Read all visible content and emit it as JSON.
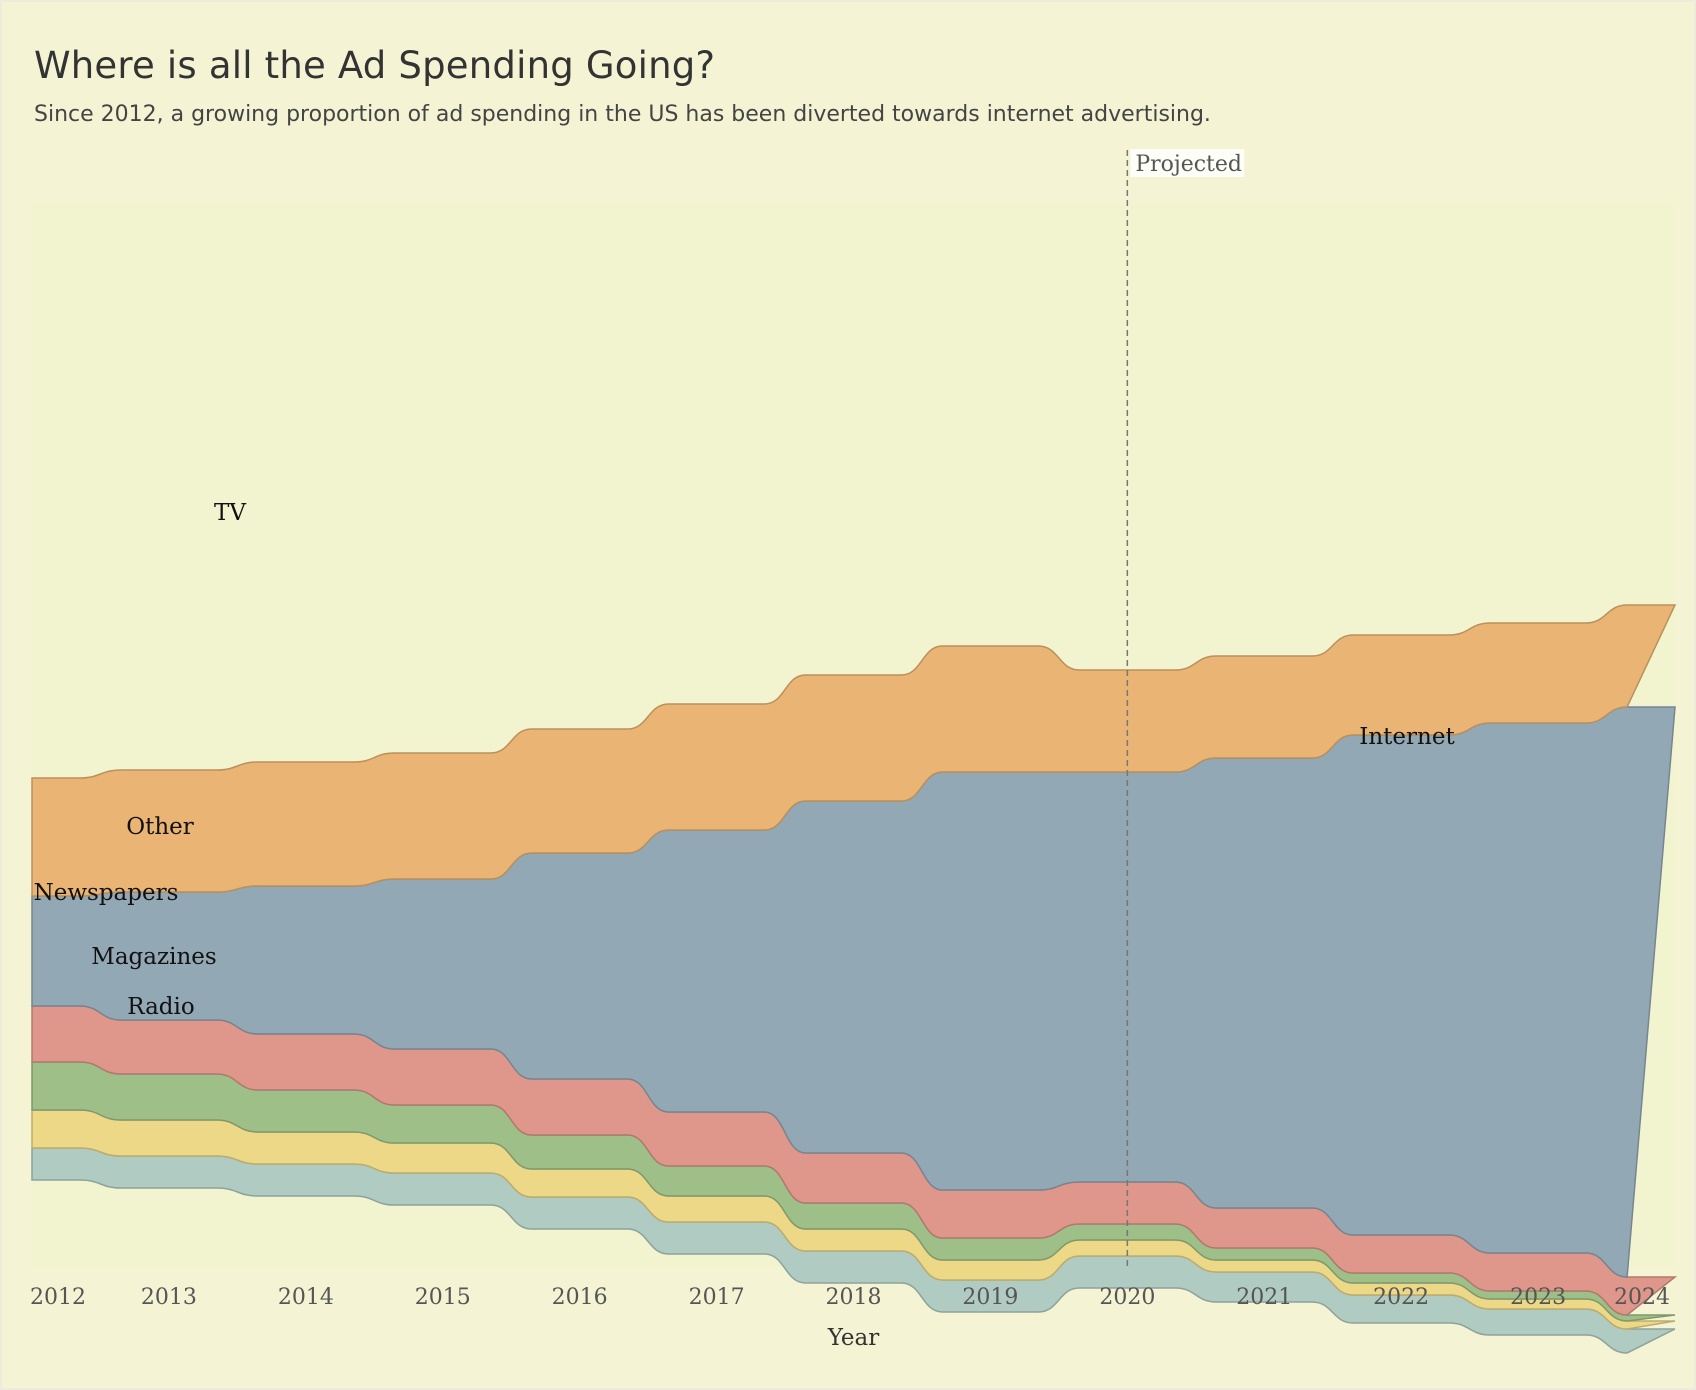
{
  "title": "Where is all the Ad Spending Going?",
  "subtitle": "Since 2012, a growing proportion of ad spending in the US has been diverted towards internet advertising.",
  "colors": {
    "background": "#f4f4d4",
    "plot_background": "#f2f4cf"
  },
  "chart_data": {
    "type": "area",
    "stack_offset": "streamgraph",
    "x": [
      2012,
      2013,
      2014,
      2015,
      2016,
      2017,
      2018,
      2019,
      2020,
      2021,
      2022,
      2023,
      2024
    ],
    "x_ticks": [
      "2012",
      "2013",
      "2014",
      "2015",
      "2016",
      "2017",
      "2018",
      "2019",
      "2020",
      "2021",
      "2022",
      "2023",
      "2024"
    ],
    "xlabel": "Year",
    "ylabel": "",
    "grid": false,
    "legend": "none",
    "series_order_bottom_to_top": [
      "Radio",
      "Magazines",
      "Newspapers",
      "Other",
      "Internet",
      "TV"
    ],
    "series": [
      {
        "name": "Radio",
        "color": "#b0cbc2",
        "values": [
          16,
          16,
          16,
          16,
          16,
          16,
          16,
          16,
          16,
          15,
          14,
          13,
          12
        ]
      },
      {
        "name": "Magazines",
        "color": "#ecd887",
        "values": [
          19,
          18,
          16,
          15,
          14,
          13,
          11,
          10,
          8,
          6,
          6,
          5,
          4
        ]
      },
      {
        "name": "Newspapers",
        "color": "#9fbf88",
        "values": [
          24,
          23,
          21,
          19,
          17,
          15,
          13,
          11,
          8,
          6,
          5,
          4,
          3
        ]
      },
      {
        "name": "Other",
        "color": "#de978a",
        "values": [
          28,
          27,
          28,
          28,
          28,
          27,
          25,
          24,
          21,
          20,
          19,
          19,
          19
        ]
      },
      {
        "name": "Internet",
        "color": "#93a8b5",
        "values": [
          55,
          64,
          74,
          85,
          113,
          141,
          176,
          209,
          205,
          225,
          250,
          265,
          285
        ]
      },
      {
        "name": "TV",
        "color": "#eab474",
        "values": [
          59,
          61,
          62,
          63,
          62,
          63,
          63,
          63,
          51,
          51,
          50,
          50,
          51
        ]
      }
    ],
    "annotations": [
      {
        "x": 2020,
        "text": "Projected",
        "style": "dashed-vertical-line"
      }
    ]
  }
}
